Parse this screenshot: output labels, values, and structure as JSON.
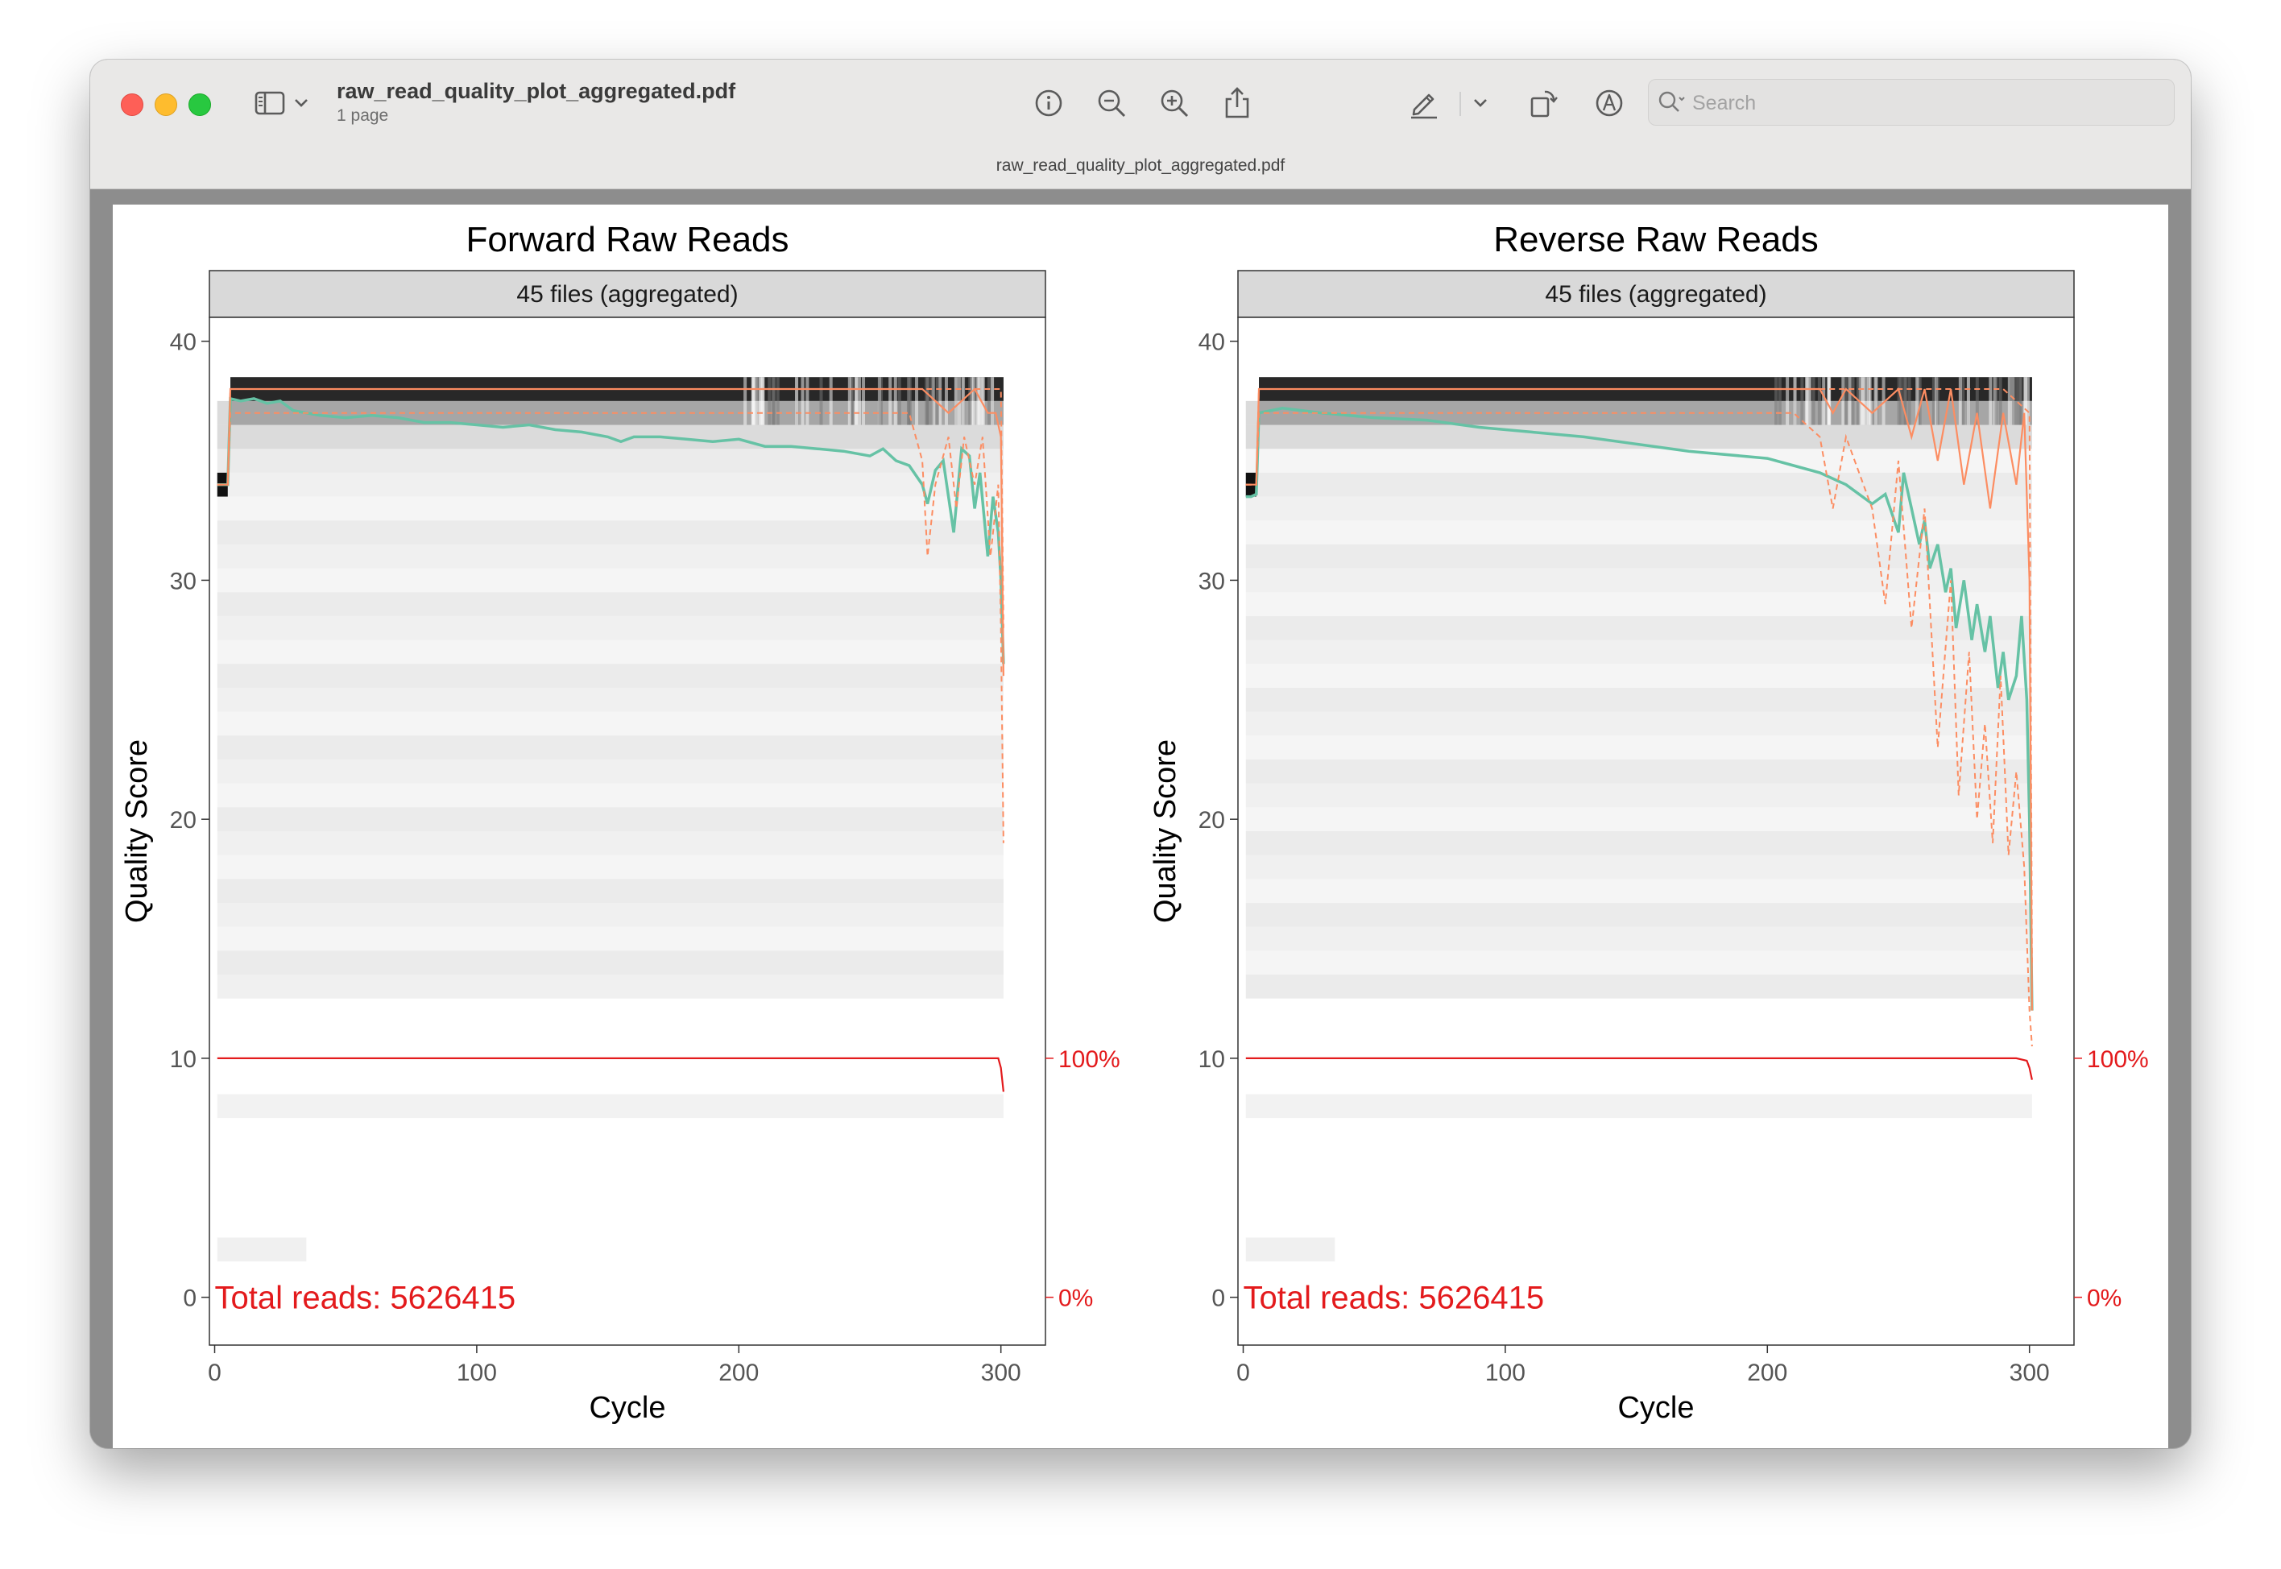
{
  "window": {
    "file_name": "raw_read_quality_plot_aggregated.pdf",
    "page_count": "1 page",
    "tab_title": "raw_read_quality_plot_aggregated.pdf"
  },
  "toolbar": {
    "icons": [
      "sidebar-icon",
      "chevron-down-icon",
      "info-icon",
      "zoom-out-icon",
      "zoom-in-icon",
      "share-icon",
      "highlight-pen-icon",
      "chevron-down-icon",
      "rotate-icon",
      "markup-icon",
      "signature-icon",
      "search-icon"
    ],
    "search_placeholder": "Search"
  },
  "chart_data": [
    {
      "type": "line",
      "title": "Forward Raw Reads",
      "facet_label": "45 files (aggregated)",
      "xlabel": "Cycle",
      "ylabel": "Quality Score",
      "xlim": [
        -2,
        317
      ],
      "ylim": [
        -2,
        41
      ],
      "x_ticks": [
        0,
        100,
        200,
        300
      ],
      "y_ticks": [
        0,
        10,
        20,
        30,
        40
      ],
      "secondary_y_ticks": [
        {
          "value": 10,
          "label": "100%"
        },
        {
          "value": 0,
          "label": "0%"
        }
      ],
      "annotation": "Total reads: 5626415",
      "colors": {
        "mean": "#66c2a5",
        "quartiles": "#fc8d62",
        "read_fraction": "#e31a1c",
        "annotation": "#e31a1c"
      },
      "series": [
        {
          "role": "mean",
          "points": [
            [
              1,
              34.0
            ],
            [
              5,
              34.0
            ],
            [
              6,
              37.6
            ],
            [
              10,
              37.5
            ],
            [
              15,
              37.6
            ],
            [
              20,
              37.4
            ],
            [
              25,
              37.5
            ],
            [
              30,
              37.1
            ],
            [
              40,
              36.9
            ],
            [
              50,
              36.8
            ],
            [
              60,
              36.9
            ],
            [
              70,
              36.8
            ],
            [
              80,
              36.6
            ],
            [
              90,
              36.6
            ],
            [
              100,
              36.5
            ],
            [
              110,
              36.4
            ],
            [
              120,
              36.5
            ],
            [
              130,
              36.3
            ],
            [
              140,
              36.2
            ],
            [
              150,
              36.0
            ],
            [
              155,
              35.8
            ],
            [
              160,
              36.0
            ],
            [
              170,
              36.0
            ],
            [
              180,
              35.9
            ],
            [
              190,
              35.8
            ],
            [
              200,
              35.9
            ],
            [
              210,
              35.6
            ],
            [
              220,
              35.6
            ],
            [
              230,
              35.5
            ],
            [
              240,
              35.4
            ],
            [
              250,
              35.2
            ],
            [
              255,
              35.5
            ],
            [
              260,
              35.0
            ],
            [
              265,
              34.8
            ],
            [
              270,
              34.0
            ],
            [
              272,
              33.2
            ],
            [
              275,
              34.6
            ],
            [
              278,
              35.0
            ],
            [
              280,
              33.5
            ],
            [
              282,
              32.0
            ],
            [
              285,
              35.5
            ],
            [
              288,
              35.2
            ],
            [
              290,
              33.0
            ],
            [
              292,
              34.5
            ],
            [
              295,
              31.0
            ],
            [
              297,
              33.5
            ],
            [
              299,
              32.0
            ],
            [
              300,
              30.0
            ],
            [
              301,
              26.5
            ]
          ]
        },
        {
          "role": "median",
          "points": [
            [
              1,
              34.0
            ],
            [
              5,
              34.0
            ],
            [
              6,
              38.0
            ],
            [
              30,
              38.0
            ],
            [
              60,
              38.0
            ],
            [
              90,
              38.0
            ],
            [
              120,
              38.0
            ],
            [
              150,
              38.0
            ],
            [
              180,
              38.0
            ],
            [
              210,
              38.0
            ],
            [
              240,
              38.0
            ],
            [
              270,
              38.0
            ],
            [
              280,
              37.0
            ],
            [
              290,
              38.0
            ],
            [
              295,
              37.0
            ],
            [
              298,
              37.0
            ],
            [
              300,
              36.0
            ],
            [
              301,
              26.0
            ]
          ]
        },
        {
          "role": "q25",
          "points": [
            [
              1,
              34.0
            ],
            [
              5,
              34.0
            ],
            [
              6,
              37.0
            ],
            [
              60,
              37.0
            ],
            [
              120,
              37.0
            ],
            [
              180,
              37.0
            ],
            [
              200,
              37.0
            ],
            [
              220,
              37.0
            ],
            [
              240,
              37.0
            ],
            [
              260,
              37.0
            ],
            [
              265,
              37.0
            ],
            [
              270,
              35.0
            ],
            [
              272,
              31.0
            ],
            [
              275,
              34.0
            ],
            [
              280,
              36.0
            ],
            [
              283,
              33.0
            ],
            [
              286,
              36.0
            ],
            [
              290,
              34.0
            ],
            [
              293,
              36.0
            ],
            [
              296,
              31.0
            ],
            [
              299,
              34.0
            ],
            [
              300,
              28.0
            ],
            [
              301,
              19.0
            ]
          ]
        },
        {
          "role": "q75",
          "points": [
            [
              1,
              34.0
            ],
            [
              5,
              34.0
            ],
            [
              6,
              38.0
            ],
            [
              100,
              38.0
            ],
            [
              200,
              38.0
            ],
            [
              250,
              38.0
            ],
            [
              270,
              38.0
            ],
            [
              290,
              38.0
            ],
            [
              300,
              38.0
            ],
            [
              301,
              28.0
            ]
          ]
        },
        {
          "role": "read_fraction",
          "points": [
            [
              1,
              10.0
            ],
            [
              100,
              10.0
            ],
            [
              200,
              10.0
            ],
            [
              295,
              10.0
            ],
            [
              299,
              10.0
            ],
            [
              300,
              9.6
            ],
            [
              301,
              8.6
            ]
          ]
        }
      ]
    },
    {
      "type": "line",
      "title": "Reverse Raw Reads",
      "facet_label": "45 files (aggregated)",
      "xlabel": "Cycle",
      "ylabel": "Quality Score",
      "xlim": [
        -2,
        317
      ],
      "ylim": [
        -2,
        41
      ],
      "x_ticks": [
        0,
        100,
        200,
        300
      ],
      "y_ticks": [
        0,
        10,
        20,
        30,
        40
      ],
      "secondary_y_ticks": [
        {
          "value": 10,
          "label": "100%"
        },
        {
          "value": 0,
          "label": "0%"
        }
      ],
      "annotation": "Total reads: 5626415",
      "colors": {
        "mean": "#66c2a5",
        "quartiles": "#fc8d62",
        "read_fraction": "#e31a1c",
        "annotation": "#e31a1c"
      },
      "series": [
        {
          "role": "mean",
          "points": [
            [
              1,
              33.5
            ],
            [
              3,
              33.5
            ],
            [
              5,
              33.6
            ],
            [
              6,
              37.0
            ],
            [
              15,
              37.2
            ],
            [
              30,
              37.0
            ],
            [
              50,
              36.8
            ],
            [
              70,
              36.7
            ],
            [
              90,
              36.4
            ],
            [
              110,
              36.2
            ],
            [
              130,
              36.0
            ],
            [
              150,
              35.7
            ],
            [
              170,
              35.4
            ],
            [
              190,
              35.2
            ],
            [
              200,
              35.1
            ],
            [
              210,
              34.8
            ],
            [
              220,
              34.5
            ],
            [
              230,
              34.0
            ],
            [
              240,
              33.2
            ],
            [
              245,
              33.6
            ],
            [
              250,
              32.0
            ],
            [
              252,
              34.5
            ],
            [
              255,
              33.0
            ],
            [
              258,
              31.5
            ],
            [
              260,
              32.5
            ],
            [
              262,
              30.5
            ],
            [
              265,
              31.5
            ],
            [
              268,
              29.5
            ],
            [
              270,
              30.5
            ],
            [
              272,
              28.0
            ],
            [
              275,
              30.0
            ],
            [
              278,
              27.5
            ],
            [
              280,
              29.0
            ],
            [
              283,
              27.0
            ],
            [
              285,
              28.5
            ],
            [
              288,
              25.5
            ],
            [
              290,
              27.0
            ],
            [
              292,
              25.0
            ],
            [
              295,
              26.0
            ],
            [
              297,
              28.5
            ],
            [
              299,
              25.0
            ],
            [
              300,
              20.0
            ],
            [
              301,
              12.0
            ]
          ]
        },
        {
          "role": "median",
          "points": [
            [
              1,
              34.0
            ],
            [
              5,
              34.0
            ],
            [
              6,
              38.0
            ],
            [
              100,
              38.0
            ],
            [
              200,
              38.0
            ],
            [
              220,
              38.0
            ],
            [
              225,
              37.0
            ],
            [
              230,
              38.0
            ],
            [
              240,
              37.0
            ],
            [
              250,
              38.0
            ],
            [
              255,
              36.0
            ],
            [
              260,
              38.0
            ],
            [
              265,
              35.0
            ],
            [
              270,
              38.0
            ],
            [
              275,
              34.0
            ],
            [
              280,
              37.0
            ],
            [
              285,
              33.0
            ],
            [
              290,
              37.0
            ],
            [
              295,
              34.0
            ],
            [
              298,
              37.0
            ],
            [
              300,
              30.0
            ],
            [
              301,
              12.0
            ]
          ]
        },
        {
          "role": "q25",
          "points": [
            [
              1,
              34.0
            ],
            [
              5,
              34.0
            ],
            [
              6,
              37.0
            ],
            [
              100,
              37.0
            ],
            [
              200,
              37.0
            ],
            [
              210,
              37.0
            ],
            [
              220,
              36.0
            ],
            [
              225,
              33.0
            ],
            [
              230,
              36.0
            ],
            [
              240,
              33.0
            ],
            [
              245,
              29.0
            ],
            [
              250,
              35.0
            ],
            [
              255,
              28.0
            ],
            [
              260,
              33.0
            ],
            [
              265,
              23.0
            ],
            [
              270,
              30.0
            ],
            [
              273,
              21.0
            ],
            [
              277,
              27.0
            ],
            [
              280,
              20.0
            ],
            [
              283,
              24.0
            ],
            [
              286,
              19.0
            ],
            [
              289,
              26.0
            ],
            [
              292,
              18.5
            ],
            [
              295,
              22.0
            ],
            [
              298,
              18.0
            ],
            [
              300,
              12.0
            ],
            [
              301,
              10.5
            ]
          ]
        },
        {
          "role": "q75",
          "points": [
            [
              1,
              34.0
            ],
            [
              5,
              34.0
            ],
            [
              6,
              38.0
            ],
            [
              100,
              38.0
            ],
            [
              200,
              38.0
            ],
            [
              250,
              38.0
            ],
            [
              270,
              38.0
            ],
            [
              290,
              38.0
            ],
            [
              300,
              37.0
            ],
            [
              301,
              14.0
            ]
          ]
        },
        {
          "role": "read_fraction",
          "points": [
            [
              1,
              10.0
            ],
            [
              100,
              10.0
            ],
            [
              200,
              10.0
            ],
            [
              295,
              10.0
            ],
            [
              299,
              9.9
            ],
            [
              300,
              9.6
            ],
            [
              301,
              9.1
            ]
          ]
        }
      ]
    }
  ]
}
